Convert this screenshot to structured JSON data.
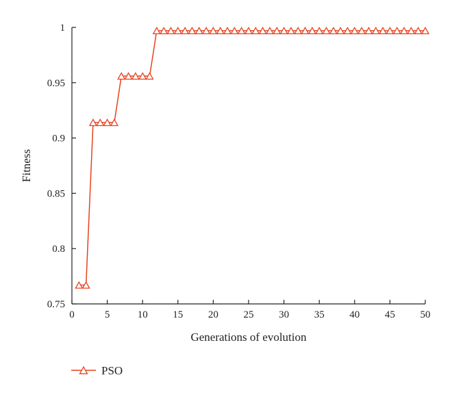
{
  "chart_data": {
    "type": "line",
    "xlabel": "Generations of evolution",
    "ylabel": "Fitness",
    "xlim": [
      0,
      50
    ],
    "ylim": [
      0.75,
      1
    ],
    "xticks": [
      "0",
      "5",
      "10",
      "15",
      "20",
      "25",
      "30",
      "35",
      "40",
      "45",
      "50"
    ],
    "yticks": [
      "0.75",
      "0.8",
      "0.85",
      "0.9",
      "0.95",
      "1"
    ],
    "grid": false,
    "legend_position": "bottom-left",
    "series": [
      {
        "name": "PSO",
        "color": "#e8401c",
        "marker": "triangle-open",
        "x": [
          1,
          2,
          3,
          4,
          5,
          6,
          7,
          8,
          9,
          10,
          11,
          12,
          13,
          14,
          15,
          16,
          17,
          18,
          19,
          20,
          21,
          22,
          23,
          24,
          25,
          26,
          27,
          28,
          29,
          30,
          31,
          32,
          33,
          34,
          35,
          36,
          37,
          38,
          39,
          40,
          41,
          42,
          43,
          44,
          45,
          46,
          47,
          48,
          49,
          50
        ],
        "values": [
          0.767,
          0.767,
          0.914,
          0.914,
          0.914,
          0.914,
          0.956,
          0.956,
          0.956,
          0.956,
          0.956,
          0.997,
          0.997,
          0.997,
          0.997,
          0.997,
          0.997,
          0.997,
          0.997,
          0.997,
          0.997,
          0.997,
          0.997,
          0.997,
          0.997,
          0.997,
          0.997,
          0.997,
          0.997,
          0.997,
          0.997,
          0.997,
          0.997,
          0.997,
          0.997,
          0.997,
          0.997,
          0.997,
          0.997,
          0.997,
          0.997,
          0.997,
          0.997,
          0.997,
          0.997,
          0.997,
          0.997,
          0.997,
          0.997,
          0.997
        ]
      }
    ]
  }
}
